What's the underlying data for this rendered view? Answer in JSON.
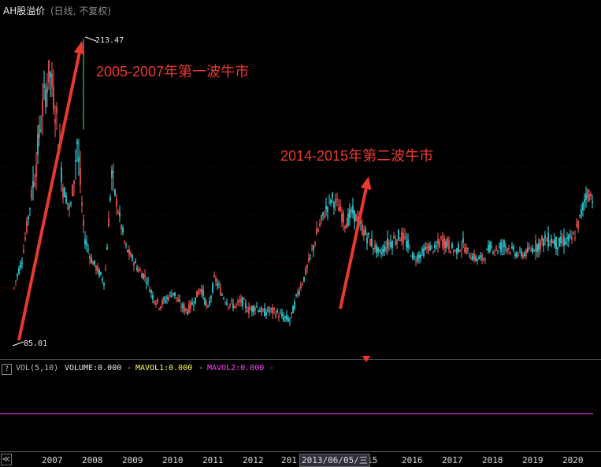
{
  "header": {
    "title": "AH股溢价",
    "subtitle": "(日线, 不复权)"
  },
  "annotations": {
    "wave1": "2005-2007年第一波牛市",
    "wave2": "2014-2015年第二波牛市"
  },
  "price_marks": {
    "high": "213.47",
    "low": "85.01"
  },
  "volume": {
    "help_label": "?",
    "indicator": "VOL(5,10)",
    "volume_label": "VOLUME:0.000",
    "mavol1_label": "MAVOL1:0.000",
    "mavol2_label": "MAVOL2:0.000",
    "dash": "-"
  },
  "x_axis": {
    "scroll_label": "≪",
    "cursor_date": "2013/06/05/三",
    "year_labels": [
      "2007",
      "2008",
      "2009",
      "2010",
      "2011",
      "2012",
      "201",
      "15",
      "2016",
      "2017",
      "2018",
      "2019",
      "2020"
    ]
  },
  "colors": {
    "up": "#ff5a5a",
    "down": "#33e0e8",
    "text_red": "#e8392f",
    "mavol1": "#ffff55",
    "mavol2": "#ff44ff",
    "grid": "#3a0000"
  },
  "chart_data": {
    "type": "candlestick",
    "title": "AH股溢价",
    "subtitle": "(日线, 不复权)",
    "x": [
      "2006-01",
      "2006-06",
      "2006-10",
      "2007-01",
      "2007-03",
      "2007-05",
      "2007-07",
      "2007-08",
      "2007-10",
      "2007-12",
      "2008-02",
      "2008-04",
      "2008-06",
      "2008-08",
      "2008-10",
      "2008-12",
      "2009-02",
      "2009-04",
      "2009-06",
      "2009-08",
      "2009-10",
      "2009-12",
      "2010-02",
      "2010-04",
      "2010-06",
      "2010-08",
      "2010-10",
      "2010-12",
      "2011-02",
      "2011-04",
      "2011-06",
      "2011-08",
      "2011-10",
      "2011-12",
      "2012-02",
      "2012-04",
      "2012-06",
      "2012-08",
      "2012-10",
      "2012-12",
      "2013-02",
      "2013-04",
      "2013-06",
      "2013-08",
      "2013-10",
      "2013-12",
      "2014-02",
      "2014-04",
      "2014-06",
      "2014-08",
      "2014-10",
      "2014-12",
      "2015-02",
      "2015-04",
      "2015-06",
      "2015-08",
      "2015-10",
      "2015-12",
      "2016-02",
      "2016-04",
      "2016-06",
      "2016-08",
      "2016-10",
      "2016-12",
      "2017-02",
      "2017-04",
      "2017-06",
      "2017-08",
      "2017-10",
      "2017-12",
      "2018-02",
      "2018-04",
      "2018-06",
      "2018-08",
      "2018-10",
      "2018-12",
      "2019-02",
      "2019-04",
      "2019-06",
      "2019-08",
      "2019-10",
      "2019-12",
      "2020-02",
      "2020-04",
      "2020-06",
      "2020-08",
      "2020-10"
    ],
    "close": [
      88,
      95,
      110,
      120,
      140,
      160,
      185,
      200,
      180,
      150,
      140,
      170,
      130,
      120,
      115,
      110,
      155,
      140,
      125,
      120,
      115,
      112,
      104,
      100,
      103,
      106,
      100,
      98,
      102,
      108,
      98,
      112,
      105,
      101,
      100,
      102,
      98,
      100,
      97,
      98,
      97,
      95,
      94,
      105,
      112,
      122,
      132,
      140,
      146,
      142,
      135,
      140,
      135,
      130,
      126,
      122,
      126,
      128,
      130,
      126,
      120,
      122,
      125,
      124,
      128,
      126,
      123,
      126,
      122,
      120,
      120,
      125,
      124,
      126,
      124,
      122,
      122,
      124,
      126,
      128,
      128,
      126,
      128,
      128,
      136,
      148,
      146
    ],
    "high_mark": 213.47,
    "low_mark": 85.01,
    "volume": {
      "indicator": "VOL(5,10)",
      "VOLUME": 0.0,
      "MAVOL1": 0.0,
      "MAVOL2": 0.0
    }
  }
}
